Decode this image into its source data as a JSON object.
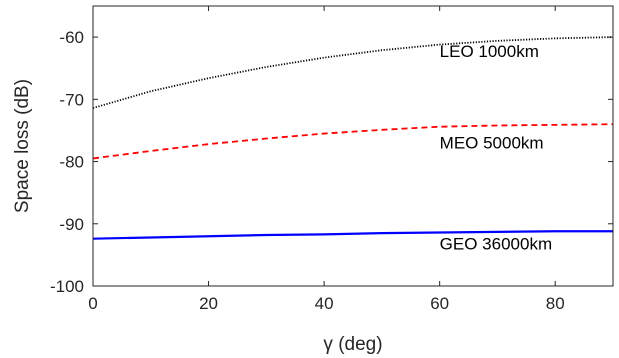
{
  "chart_data": {
    "type": "line",
    "title": "",
    "xlabel": "γ (deg)",
    "ylabel": "Space loss (dB)",
    "xlim": [
      0,
      90
    ],
    "ylim": [
      -100,
      -55
    ],
    "xticks": [
      0,
      20,
      40,
      60,
      80
    ],
    "yticks": [
      -100,
      -90,
      -80,
      -70,
      -60
    ],
    "xtick_labels": [
      "0",
      "20",
      "40",
      "60",
      "80"
    ],
    "ytick_labels": [
      "-100",
      "-90",
      "-80",
      "-70",
      "-60"
    ],
    "grid": false,
    "series": [
      {
        "name": "LEO 1000km",
        "color": "#000000",
        "style": "dotted",
        "x": [
          0,
          10,
          20,
          30,
          40,
          50,
          60,
          70,
          80,
          90
        ],
        "y": [
          -71.4,
          -68.7,
          -66.6,
          -64.8,
          -63.3,
          -62.1,
          -61.2,
          -60.6,
          -60.2,
          -60.0
        ]
      },
      {
        "name": "MEO 5000km",
        "color": "#ff0000",
        "style": "dashed",
        "x": [
          0,
          10,
          20,
          30,
          40,
          50,
          60,
          70,
          80,
          90
        ],
        "y": [
          -79.5,
          -78.3,
          -77.2,
          -76.3,
          -75.5,
          -74.9,
          -74.4,
          -74.2,
          -74.1,
          -74.0
        ]
      },
      {
        "name": "GEO 36000km",
        "color": "#0000ff",
        "style": "solid",
        "x": [
          0,
          10,
          20,
          30,
          40,
          50,
          60,
          70,
          80,
          90
        ],
        "y": [
          -92.4,
          -92.2,
          -92.0,
          -91.8,
          -91.7,
          -91.5,
          -91.4,
          -91.3,
          -91.2,
          -91.2
        ]
      }
    ],
    "annotations": [
      {
        "text": "LEO 1000km",
        "x": 60,
        "y": -62.2
      },
      {
        "text": "MEO 5000km",
        "x": 60,
        "y": -76.9
      },
      {
        "text": "GEO 36000km",
        "x": 60,
        "y": -93.2
      }
    ]
  }
}
